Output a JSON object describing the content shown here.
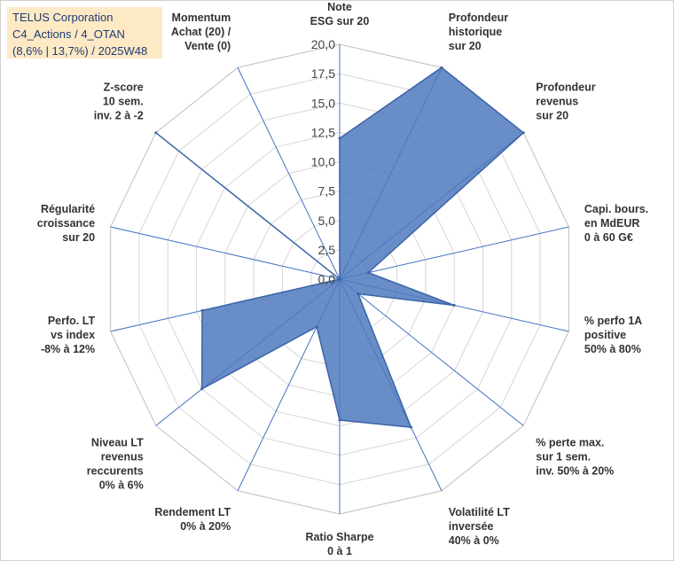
{
  "title_lines": [
    "TELUS Corporation",
    "C4_Actions / 4_OTAN",
    "(8,6% | 13,7%) / 2025W48"
  ],
  "colors": {
    "fill": "#4f79bd",
    "stroke": "#3b64a8",
    "grid": "#d6d6d6",
    "spoke": "#4472c4",
    "title_bg": "#fde9c4"
  },
  "chart_data": {
    "type": "radar",
    "rmin": 0,
    "rmax": 20,
    "ticks": [
      "0,0",
      "2,5",
      "5,0",
      "7,5",
      "10,0",
      "12,5",
      "15,0",
      "17,5",
      "20,0"
    ],
    "axes": [
      {
        "label": [
          "Note",
          "ESG sur 20"
        ],
        "value": 12
      },
      {
        "label": [
          "Profondeur",
          "historique",
          "sur 20"
        ],
        "value": 20
      },
      {
        "label": [
          "Profondeur",
          "revenus",
          "sur 20"
        ],
        "value": 20
      },
      {
        "label": [
          "Capi. bours.",
          "en MdEUR",
          "0 à 60 G€"
        ],
        "value": 2.5
      },
      {
        "label": [
          "% perfo 1A",
          "positive",
          "50% à 80%"
        ],
        "value": 10
      },
      {
        "label": [
          "% perte max.",
          "sur 1 sem.",
          "inv. 50% à 20%"
        ],
        "value": 2
      },
      {
        "label": [
          "Volatilité LT",
          "inversée",
          "40% à 0%"
        ],
        "value": 14
      },
      {
        "label": [
          "Ratio Sharpe",
          "0 à 1"
        ],
        "value": 12
      },
      {
        "label": [
          "Rendement LT",
          "0% à 20%"
        ],
        "value": 4.5
      },
      {
        "label": [
          "Niveau LT",
          "revenus",
          "reccurents",
          "0% à 6%"
        ],
        "value": 15
      },
      {
        "label": [
          "Perfo. LT",
          "vs index",
          "-8% à 12%"
        ],
        "value": 12
      },
      {
        "label": [
          "Régularité",
          "croissance",
          "sur 20"
        ],
        "value": 0
      },
      {
        "label": [
          "Z-score",
          "10 sem.",
          "inv. 2 à -2"
        ],
        "value": 20
      },
      {
        "label": [
          "Momentum",
          "Achat (20) /",
          "Vente (0)"
        ],
        "value": 0
      }
    ]
  }
}
